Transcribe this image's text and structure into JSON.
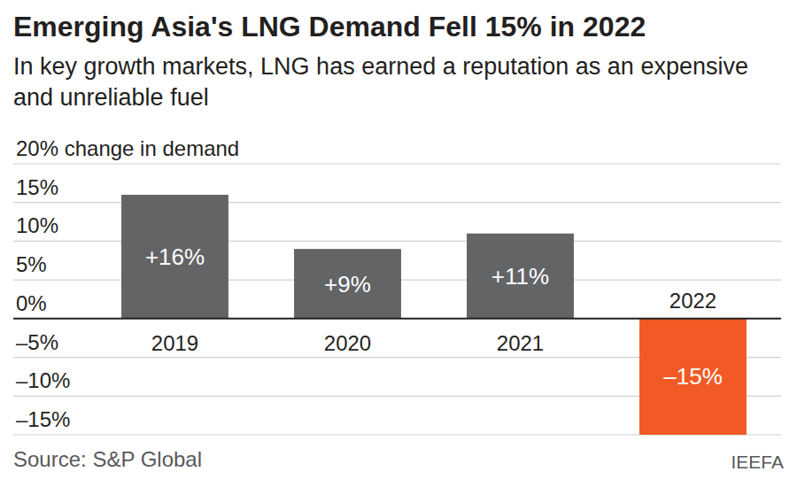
{
  "chart_data": {
    "type": "bar",
    "title": "Emerging Asia's LNG Demand Fell 15% in 2022",
    "subtitle": "In key growth markets, LNG has earned a reputation as an expensive and unreliable fuel",
    "categories": [
      "2019",
      "2020",
      "2021",
      "2022"
    ],
    "values": [
      16,
      9,
      11,
      -15
    ],
    "value_labels": [
      "+16%",
      "+9%",
      "+11%",
      "–15%"
    ],
    "colors": [
      "#636466",
      "#636466",
      "#636466",
      "#f15a24"
    ],
    "ylim": [
      -15,
      20
    ],
    "yticks": [
      {
        "value": -15,
        "label": "–15%"
      },
      {
        "value": -10,
        "label": "–10%"
      },
      {
        "value": -5,
        "label": "–5%"
      },
      {
        "value": 0,
        "label": "0%"
      },
      {
        "value": 5,
        "label": "5%"
      },
      {
        "value": 10,
        "label": "10%"
      },
      {
        "value": 15,
        "label": "15%"
      },
      {
        "value": 20,
        "label": "20% change in demand"
      }
    ],
    "grid": true,
    "data_labels": true,
    "source": "Source: S&P Global",
    "credit": "IEEFA"
  }
}
